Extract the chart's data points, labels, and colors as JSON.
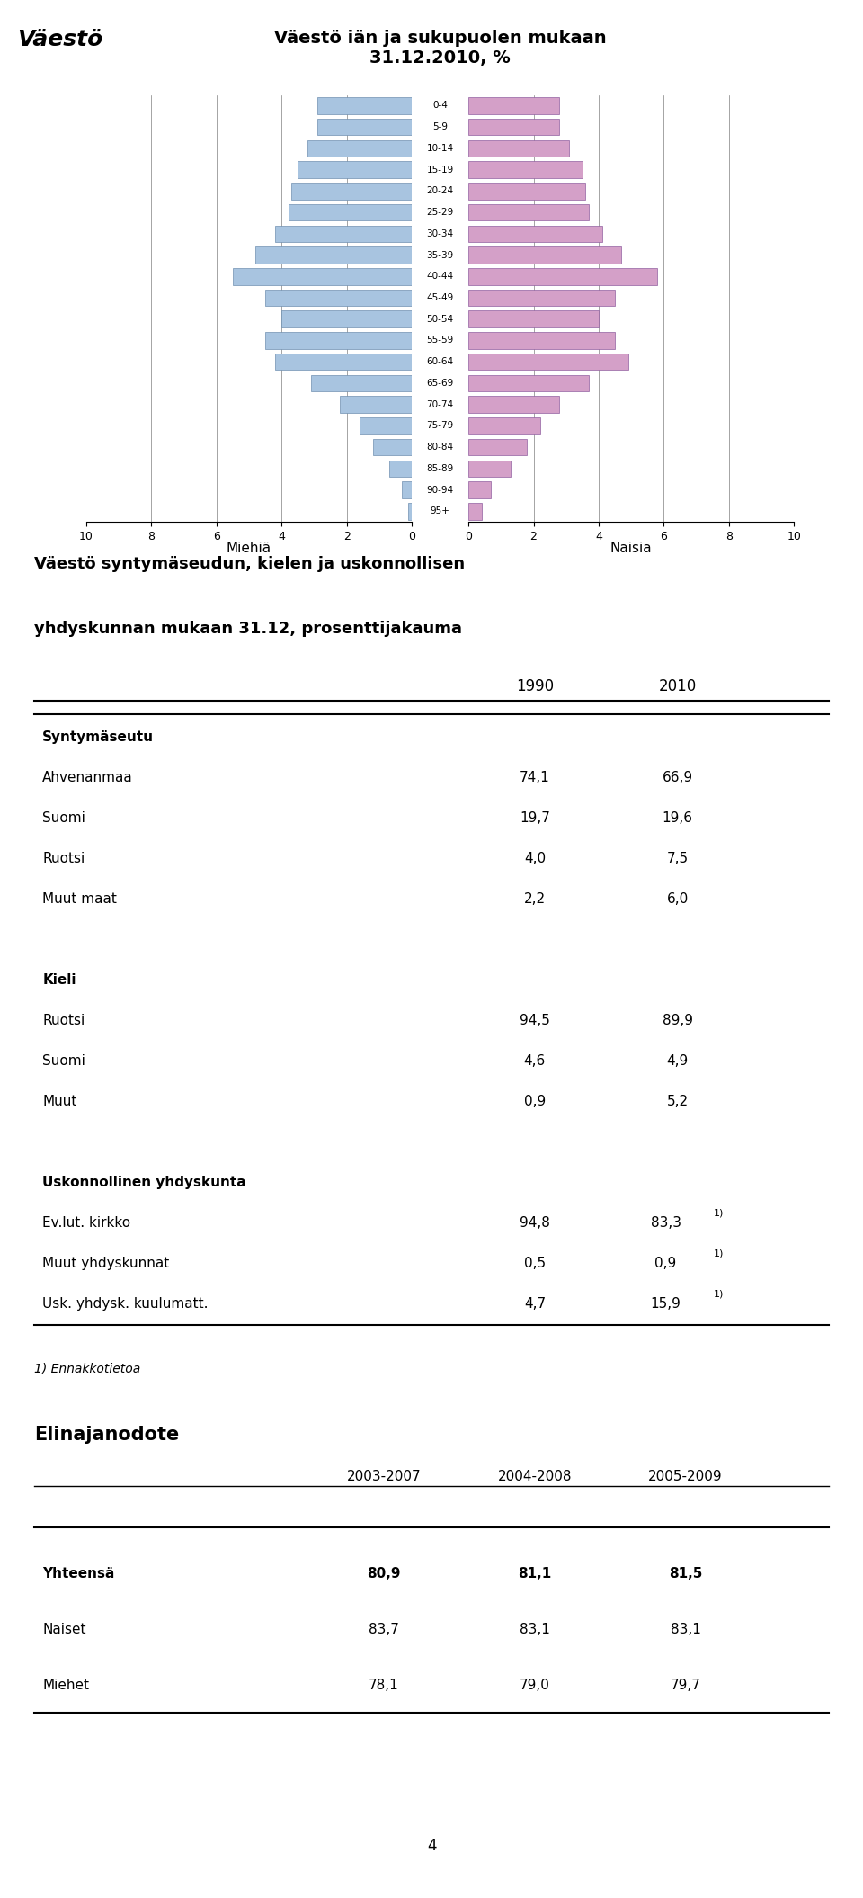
{
  "pyramid_title": "Väestö iän ja sukupuolen mukaan\n31.12.2010, %",
  "page_title": "Väestö",
  "age_groups": [
    "95+",
    "90-94",
    "85-89",
    "80-84",
    "75-79",
    "70-74",
    "65-69",
    "60-64",
    "55-59",
    "50-54",
    "45-49",
    "40-44",
    "35-39",
    "30-34",
    "25-29",
    "20-24",
    "15-19",
    "10-14",
    "5-9",
    "0-4"
  ],
  "males": [
    0.1,
    0.3,
    0.7,
    1.2,
    1.6,
    2.2,
    3.1,
    4.2,
    4.5,
    4.0,
    4.5,
    5.5,
    4.8,
    4.2,
    3.8,
    3.7,
    3.5,
    3.2,
    2.9,
    2.9
  ],
  "females": [
    0.4,
    0.7,
    1.3,
    1.8,
    2.2,
    2.8,
    3.7,
    4.9,
    4.5,
    4.0,
    4.5,
    5.8,
    4.7,
    4.1,
    3.7,
    3.6,
    3.5,
    3.1,
    2.8,
    2.8
  ],
  "male_color": "#a8c4e0",
  "female_color": "#d4a0c8",
  "xlabel_male": "Miehiä",
  "xlabel_female": "Naisia",
  "pyramid_xlim": 10,
  "table1_title_line1": "Väestö syntymäseudun, kielen ja uskonnollisen",
  "table1_title_line2": "yhdyskunnan mukaan 31.12, prosenttijakauma",
  "col_headers": [
    "1990",
    "2010"
  ],
  "syntymäseutu_header": "Syntymäseutu",
  "syntymäseutu_rows": [
    [
      "Ahvenanmaa",
      "74,1",
      "66,9"
    ],
    [
      "Suomi",
      "19,7",
      "19,6"
    ],
    [
      "Ruotsi",
      "4,0",
      "7,5"
    ],
    [
      "Muut maat",
      "2,2",
      "6,0"
    ]
  ],
  "kieli_header": "Kieli",
  "kieli_rows": [
    [
      "Ruotsi",
      "94,5",
      "89,9"
    ],
    [
      "Suomi",
      "4,6",
      "4,9"
    ],
    [
      "Muut",
      "0,9",
      "5,2"
    ]
  ],
  "uskonnollinen_header": "Uskonnollinen yhdyskunta",
  "uskonnollinen_rows": [
    [
      "Ev.lut. kirkko",
      "94,8",
      "83,3",
      true
    ],
    [
      "Muut yhdyskunnat",
      "0,5",
      "0,9",
      true
    ],
    [
      "Usk. yhdysk. kuulumatt.",
      "4,7",
      "15,9",
      true
    ]
  ],
  "footnote": "1) Ennakkotietoa",
  "elinajanodote_title": "Elinajanodote",
  "eli_col_headers": [
    "2003-2007",
    "2004-2008",
    "2005-2009"
  ],
  "eli_rows": [
    [
      "Yhteensä",
      "80,9",
      "81,1",
      "81,5",
      true
    ],
    [
      "Naiset",
      "83,7",
      "83,1",
      "83,1",
      false
    ],
    [
      "Miehet",
      "78,1",
      "79,0",
      "79,7",
      false
    ]
  ],
  "page_number": "4",
  "background_color": "#ffffff"
}
